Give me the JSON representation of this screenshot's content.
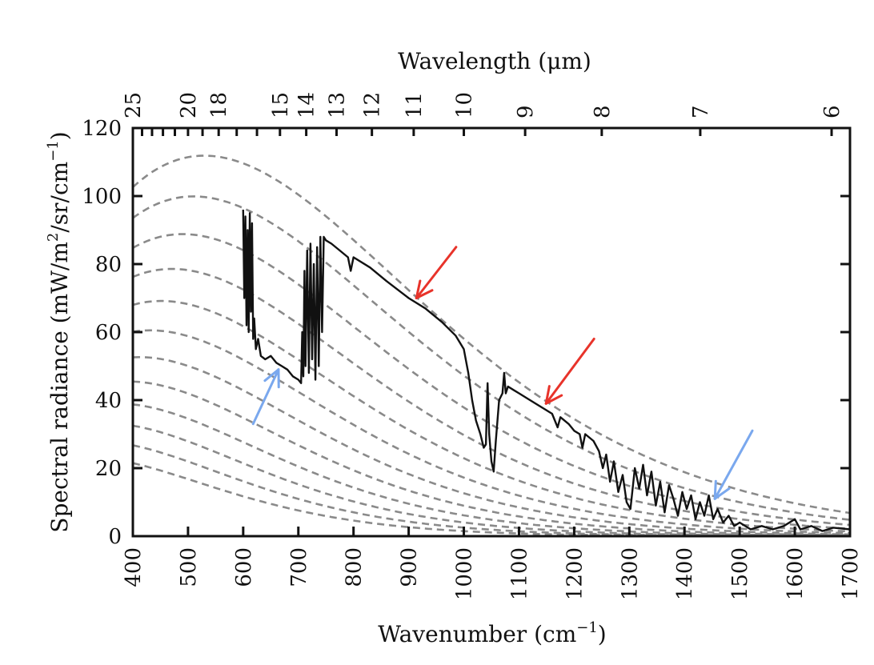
{
  "chart_data": {
    "type": "line",
    "xlabel": "Wavenumber (cm",
    "xlabel_sup": "−1",
    "xlabel_end": ")",
    "ylabel": "Spectral radiance (mW/m",
    "ylabel_sup1": "2",
    "ylabel_mid": "/sr/cm",
    "ylabel_sup2": "−1",
    "ylabel_end": ")",
    "top_axis_label": "Wavelength (μm)",
    "xlim": [
      400,
      1700
    ],
    "ylim": [
      0,
      120
    ],
    "x_ticks": [
      "400",
      "500",
      "600",
      "700",
      "800",
      "900",
      "1000",
      "1100",
      "1200",
      "1300",
      "1400",
      "1500",
      "1600",
      "1700"
    ],
    "y_ticks": [
      "0",
      "20",
      "40",
      "60",
      "80",
      "100",
      "120"
    ],
    "top_ticks_um": [
      "25",
      "20",
      "18",
      "15",
      "14",
      "13",
      "12",
      "11",
      "10",
      "9",
      "8",
      "7",
      "6"
    ],
    "top_minor_ticks_um": [
      6,
      7,
      8,
      9,
      10,
      11,
      12,
      13,
      14,
      15,
      16,
      17,
      18,
      19,
      20,
      21,
      22,
      23,
      24,
      25
    ],
    "grid": false,
    "reference_curves": {
      "kind": "planck-blackbody",
      "style": "dashed",
      "color": "#8a8a8a",
      "temperatures_K": [
        270,
        260,
        250,
        240,
        230,
        220,
        210,
        200,
        190,
        180,
        170,
        160
      ]
    },
    "series": [
      {
        "color": "#111111",
        "points": [
          [
            600,
            96
          ],
          [
            602,
            70
          ],
          [
            604,
            94
          ],
          [
            606,
            62
          ],
          [
            608,
            90
          ],
          [
            610,
            60
          ],
          [
            612,
            95
          ],
          [
            614,
            66
          ],
          [
            616,
            92
          ],
          [
            618,
            58
          ],
          [
            620,
            64
          ],
          [
            623,
            55
          ],
          [
            627,
            58
          ],
          [
            632,
            53
          ],
          [
            640,
            52
          ],
          [
            650,
            53
          ],
          [
            660,
            51
          ],
          [
            670,
            50
          ],
          [
            680,
            49
          ],
          [
            690,
            47
          ],
          [
            700,
            46
          ],
          [
            705,
            45
          ],
          [
            707,
            60
          ],
          [
            709,
            47
          ],
          [
            711,
            78
          ],
          [
            713,
            50
          ],
          [
            716,
            84
          ],
          [
            719,
            48
          ],
          [
            722,
            86
          ],
          [
            725,
            52
          ],
          [
            728,
            80
          ],
          [
            731,
            46
          ],
          [
            734,
            85
          ],
          [
            737,
            50
          ],
          [
            740,
            88
          ],
          [
            743,
            60
          ],
          [
            746,
            88
          ],
          [
            750,
            87
          ],
          [
            760,
            86
          ],
          [
            775,
            84
          ],
          [
            790,
            82
          ],
          [
            795,
            78
          ],
          [
            800,
            82
          ],
          [
            830,
            79
          ],
          [
            860,
            75
          ],
          [
            900,
            70
          ],
          [
            930,
            67
          ],
          [
            960,
            63
          ],
          [
            985,
            59
          ],
          [
            1000,
            55
          ],
          [
            1008,
            48
          ],
          [
            1015,
            40
          ],
          [
            1022,
            34
          ],
          [
            1030,
            30
          ],
          [
            1036,
            26
          ],
          [
            1040,
            27
          ],
          [
            1043,
            45
          ],
          [
            1046,
            30
          ],
          [
            1050,
            22
          ],
          [
            1054,
            19
          ],
          [
            1058,
            28
          ],
          [
            1064,
            40
          ],
          [
            1070,
            42
          ],
          [
            1073,
            48
          ],
          [
            1076,
            42
          ],
          [
            1080,
            44
          ],
          [
            1090,
            43
          ],
          [
            1100,
            42
          ],
          [
            1120,
            40
          ],
          [
            1140,
            38
          ],
          [
            1160,
            36
          ],
          [
            1170,
            32
          ],
          [
            1175,
            35
          ],
          [
            1190,
            33
          ],
          [
            1200,
            31
          ],
          [
            1210,
            30
          ],
          [
            1215,
            26
          ],
          [
            1220,
            30
          ],
          [
            1235,
            28
          ],
          [
            1245,
            25
          ],
          [
            1252,
            20
          ],
          [
            1258,
            24
          ],
          [
            1265,
            16
          ],
          [
            1272,
            22
          ],
          [
            1280,
            13
          ],
          [
            1288,
            18
          ],
          [
            1295,
            10
          ],
          [
            1302,
            8
          ],
          [
            1310,
            20
          ],
          [
            1318,
            14
          ],
          [
            1325,
            21
          ],
          [
            1332,
            12
          ],
          [
            1340,
            19
          ],
          [
            1348,
            9
          ],
          [
            1356,
            16
          ],
          [
            1364,
            7
          ],
          [
            1372,
            15
          ],
          [
            1380,
            11
          ],
          [
            1388,
            6
          ],
          [
            1396,
            13
          ],
          [
            1404,
            8
          ],
          [
            1412,
            12
          ],
          [
            1420,
            5
          ],
          [
            1428,
            10
          ],
          [
            1436,
            6
          ],
          [
            1444,
            12
          ],
          [
            1452,
            5
          ],
          [
            1460,
            8
          ],
          [
            1470,
            4
          ],
          [
            1480,
            6
          ],
          [
            1490,
            3
          ],
          [
            1500,
            4
          ],
          [
            1520,
            2
          ],
          [
            1540,
            3
          ],
          [
            1560,
            2
          ],
          [
            1580,
            3
          ],
          [
            1600,
            5
          ],
          [
            1610,
            2
          ],
          [
            1630,
            3
          ],
          [
            1650,
            1.5
          ],
          [
            1670,
            2.5
          ],
          [
            1700,
            2
          ]
        ]
      }
    ],
    "annotations": [
      {
        "type": "arrow",
        "color": "#e8332a",
        "from": [
          986,
          85
        ],
        "to": [
          914,
          70
        ]
      },
      {
        "type": "arrow",
        "color": "#e8332a",
        "from": [
          1236,
          58
        ],
        "to": [
          1149,
          39
        ]
      },
      {
        "type": "arrow",
        "color": "#7aa8ee",
        "from": [
          618,
          33
        ],
        "to": [
          664,
          49
        ]
      },
      {
        "type": "arrow",
        "color": "#7aa8ee",
        "from": [
          1523,
          31
        ],
        "to": [
          1455,
          11
        ]
      }
    ]
  }
}
